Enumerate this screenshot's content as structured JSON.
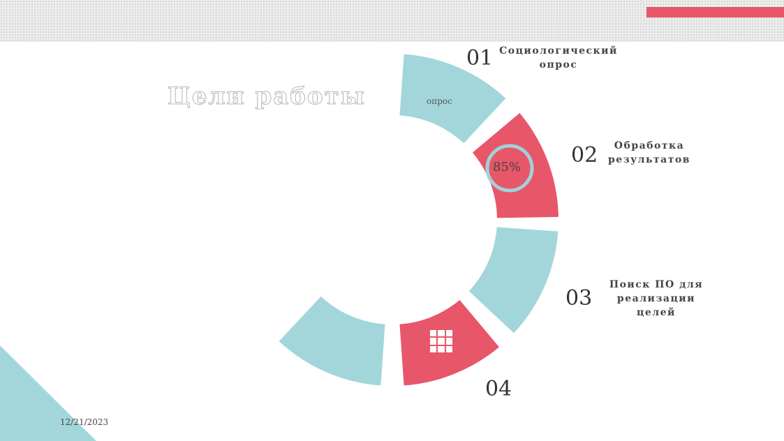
{
  "slide": {
    "title": "Цели работы",
    "date": "12/21/2023"
  },
  "colors": {
    "teal": "#a3d6da",
    "coral": "#e8566a",
    "ring": "#9fd2d8"
  },
  "steps": [
    {
      "number": "01",
      "label_lines": [
        "Социологический",
        "опрос"
      ],
      "segment_text": "опрос"
    },
    {
      "number": "02",
      "label_lines": [
        "Обработка",
        "результатов"
      ],
      "progress_label": "85%",
      "progress": 0.85
    },
    {
      "number": "03",
      "label_lines": [
        "Поиск ПО для",
        "реализации",
        "целей"
      ]
    },
    {
      "number": "04",
      "icon": "grid-icon"
    }
  ]
}
